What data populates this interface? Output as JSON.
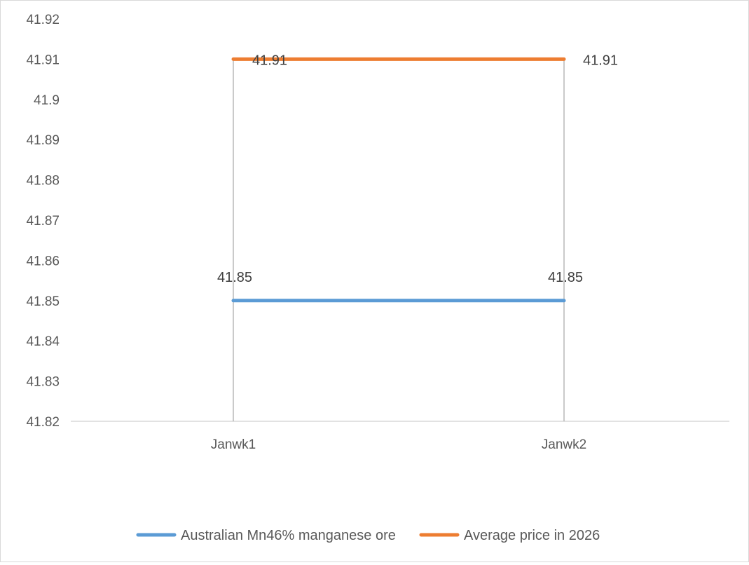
{
  "chart_data": {
    "type": "line",
    "title": "",
    "xlabel": "",
    "ylabel": "",
    "categories": [
      "Janwk1",
      "Janwk2"
    ],
    "ylim": [
      41.82,
      41.92
    ],
    "yticks": [
      "41.82",
      "41.83",
      "41.84",
      "41.85",
      "41.86",
      "41.87",
      "41.88",
      "41.89",
      "41.9",
      "41.91",
      "41.92"
    ],
    "grid": false,
    "drop_lines": true,
    "legend_position": "bottom",
    "series": [
      {
        "name": "Australian Mn46% manganese ore",
        "values": [
          41.85,
          41.85
        ],
        "labels": [
          "41.85",
          "41.85"
        ],
        "color": "#5b9bd5"
      },
      {
        "name": "Average price in 2026",
        "values": [
          41.91,
          41.91
        ],
        "labels": [
          "41.91",
          "41.91"
        ],
        "color": "#ed7d31"
      }
    ]
  }
}
